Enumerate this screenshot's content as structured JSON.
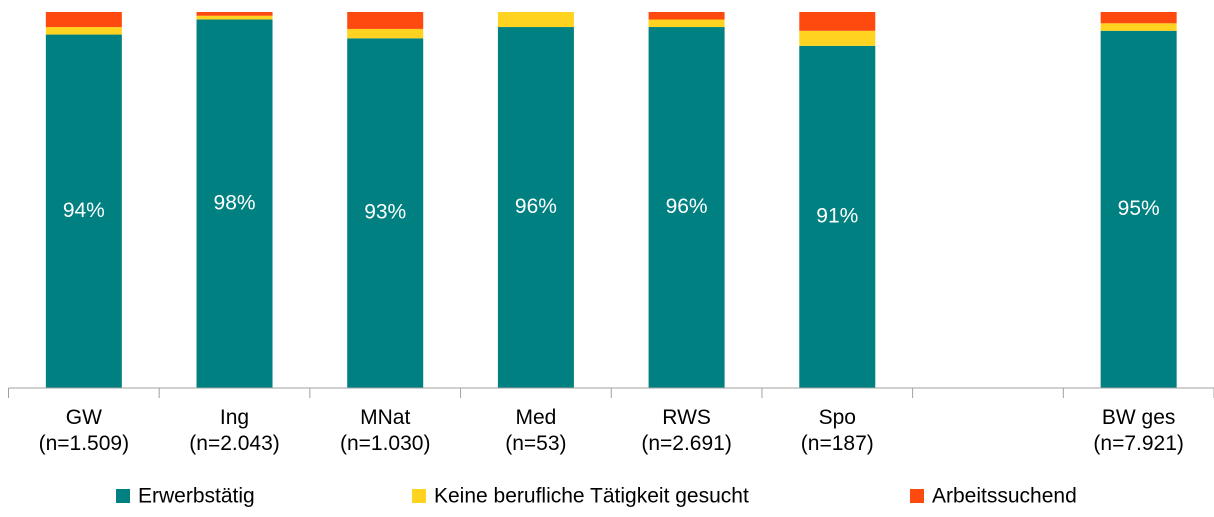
{
  "chart_data": {
    "type": "stacked_bar",
    "categories": [
      "GW\n(n=1.509)",
      "Ing\n(n=2.043)",
      "MNat\n(n=1.030)",
      "Med\n(n=53)",
      "RWS\n(n=2.691)",
      "Spo\n(n=187)",
      null,
      "BW ges\n(n=7.921)"
    ],
    "series": [
      {
        "name": "Erwerbstätig",
        "color": "#008080",
        "values": [
          94,
          98,
          93,
          96,
          96,
          91,
          null,
          95
        ],
        "value_labels": [
          "94%",
          "98%",
          "93%",
          "96%",
          "96%",
          "91%",
          null,
          "95%"
        ]
      },
      {
        "name": "Keine berufliche Tätigkeit gesucht",
        "color": "#ffd320",
        "values": [
          2,
          1,
          2.5,
          4,
          2,
          4,
          null,
          2
        ]
      },
      {
        "name": "Arbeitssuchend",
        "color": "#ff4a0f",
        "values": [
          4,
          1,
          4.5,
          0,
          2,
          5,
          null,
          3
        ]
      }
    ],
    "ylim": [
      0,
      100
    ],
    "legend": "bottom"
  }
}
